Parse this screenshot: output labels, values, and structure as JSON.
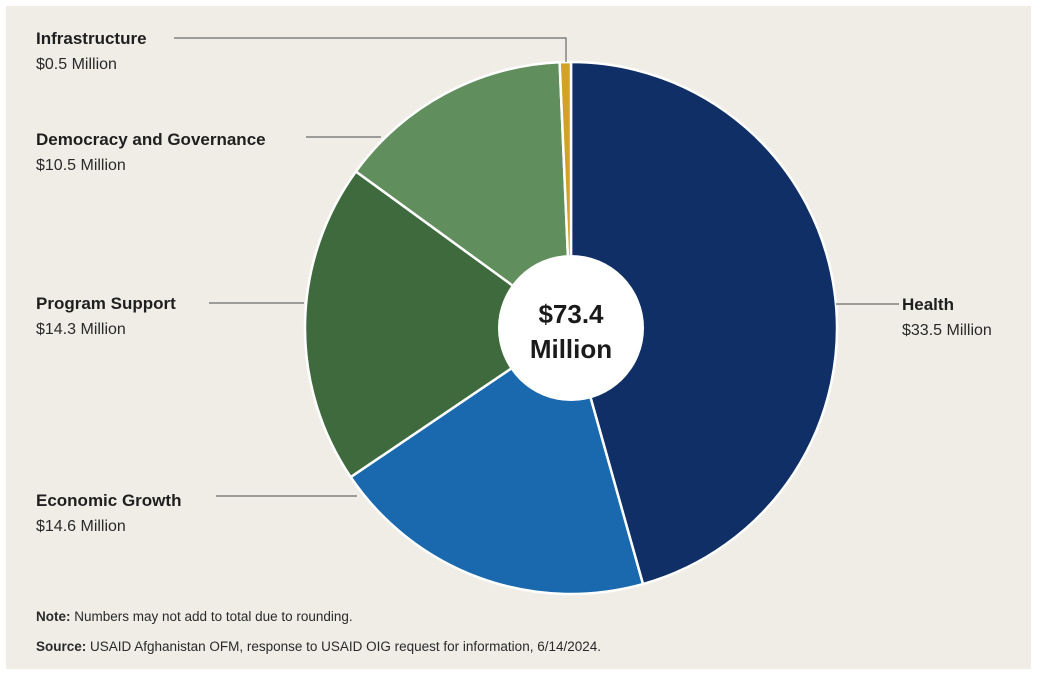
{
  "chart_data": {
    "type": "pie",
    "variant": "donut",
    "total_label_line1": "$73.4",
    "total_label_line2": "Million",
    "slices": [
      {
        "name": "Health",
        "value": 33.5,
        "value_label": "$33.5 Million",
        "color": "#0f2f66"
      },
      {
        "name": "Economic Growth",
        "value": 14.6,
        "value_label": "$14.6 Million",
        "color": "#1a68ad"
      },
      {
        "name": "Program Support",
        "value": 14.3,
        "value_label": "$14.3 Million",
        "color": "#3e6a3e"
      },
      {
        "name": "Democracy and Governance",
        "value": 10.5,
        "value_label": "$10.5 Million",
        "color": "#608e5c"
      },
      {
        "name": "Infrastructure",
        "value": 0.5,
        "value_label": "$0.5 Million",
        "color": "#d2a128"
      }
    ]
  },
  "note": {
    "prefix": "Note:",
    "text": " Numbers may not add to total due to rounding."
  },
  "source": {
    "prefix": "Source:",
    "text": " USAID Afghanistan OFM, response to USAID OIG request for information, 6/14/2024."
  }
}
